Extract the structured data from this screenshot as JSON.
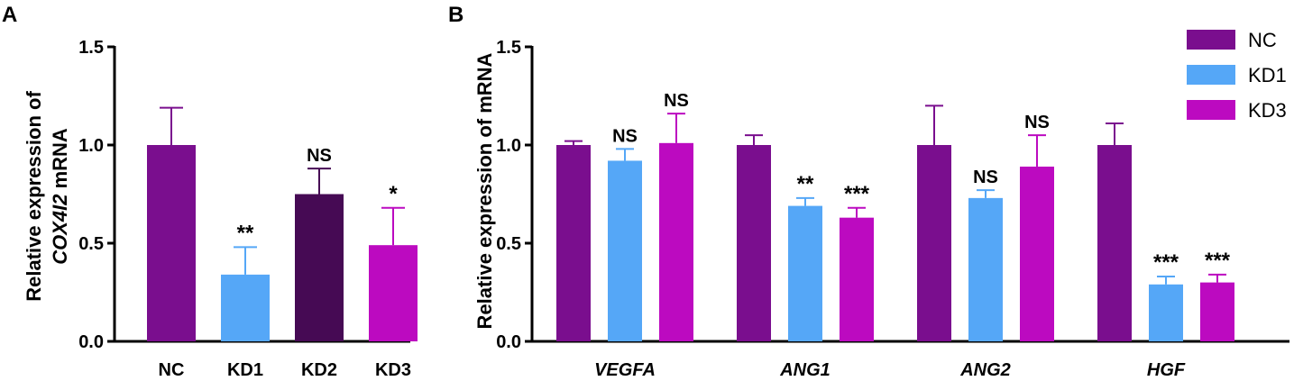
{
  "chart_data": [
    {
      "panel": "A",
      "type": "bar",
      "ylabel_line1": "Relative expression of",
      "ylabel_line2_gene": "COX4I2",
      "ylabel_line2_rest": " mRNA",
      "ylim": [
        0,
        1.5
      ],
      "yticks": [
        "0.0",
        "0.5",
        "1.0",
        "1.5"
      ],
      "ytick_values": [
        0,
        0.5,
        1.0,
        1.5
      ],
      "categories": [
        "NC",
        "KD1",
        "KD2",
        "KD3"
      ],
      "values": [
        1.0,
        0.34,
        0.75,
        0.49
      ],
      "errors": [
        0.19,
        0.14,
        0.13,
        0.19
      ],
      "significance": [
        "",
        "**",
        "NS",
        "*"
      ],
      "colors": [
        "#7a0e8e",
        "#55a7f7",
        "#460a54",
        "#bc0ac0"
      ]
    },
    {
      "panel": "B",
      "type": "bar",
      "ylabel": "Relative expression of mRNA",
      "ylim": [
        0,
        1.5
      ],
      "yticks": [
        "0.0",
        "0.5",
        "1.0",
        "1.5"
      ],
      "ytick_values": [
        0,
        0.5,
        1.0,
        1.5
      ],
      "categories": [
        "VEGFA",
        "ANG1",
        "ANG2",
        "HGF"
      ],
      "series": [
        {
          "name": "NC",
          "color": "#7a0e8e",
          "values": [
            1.0,
            1.0,
            1.0,
            1.0
          ],
          "errors": [
            0.02,
            0.05,
            0.2,
            0.11
          ],
          "significance": [
            "",
            "",
            "",
            ""
          ]
        },
        {
          "name": "KD1",
          "color": "#55a7f7",
          "values": [
            0.92,
            0.69,
            0.73,
            0.29
          ],
          "errors": [
            0.06,
            0.04,
            0.04,
            0.04
          ],
          "significance": [
            "NS",
            "**",
            "NS",
            "***"
          ]
        },
        {
          "name": "KD3",
          "color": "#bc0ac0",
          "values": [
            1.01,
            0.63,
            0.89,
            0.3
          ],
          "errors": [
            0.15,
            0.05,
            0.16,
            0.04
          ],
          "significance": [
            "NS",
            "***",
            "NS",
            "***"
          ]
        }
      ],
      "legend": [
        "NC",
        "KD1",
        "KD3"
      ],
      "legend_position": "top-right"
    }
  ]
}
